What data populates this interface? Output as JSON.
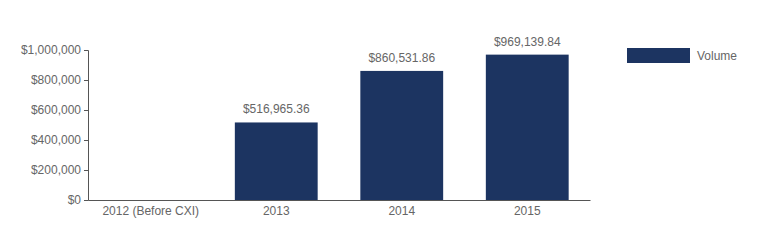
{
  "chart_data": {
    "type": "bar",
    "categories": [
      "2012 (Before CXI)",
      "2013",
      "2014",
      "2015"
    ],
    "series": [
      {
        "name": "Volume",
        "color": "#1c3461",
        "values": [
          null,
          516965.36,
          860531.86,
          969139.84
        ],
        "value_labels": [
          null,
          "$516,965.36",
          "$860,531.86",
          "$969,139.84"
        ]
      }
    ],
    "ylim": [
      0,
      1000000
    ],
    "yticks": [
      {
        "value": 0,
        "label": "$0"
      },
      {
        "value": 200000,
        "label": "$200,000"
      },
      {
        "value": 400000,
        "label": "$400,000"
      },
      {
        "value": 600000,
        "label": "$600,000"
      },
      {
        "value": 800000,
        "label": "$800,000"
      },
      {
        "value": 1000000,
        "label": "$1,000,000"
      }
    ],
    "grid": false,
    "data_labels": true,
    "legend": "top-right"
  }
}
